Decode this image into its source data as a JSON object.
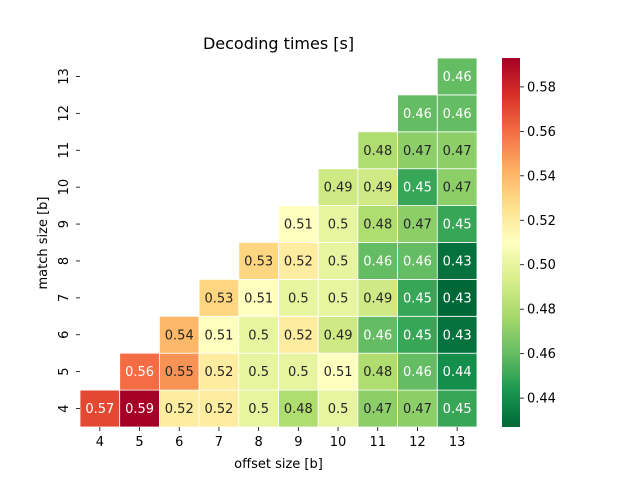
{
  "chart_data": {
    "type": "heatmap",
    "title": "Decoding times [s]",
    "xlabel": "offset size [b]",
    "ylabel": "match size [b]",
    "x_categories": [
      "4",
      "5",
      "6",
      "7",
      "8",
      "9",
      "10",
      "11",
      "12",
      "13"
    ],
    "y_categories": [
      "4",
      "5",
      "6",
      "7",
      "8",
      "9",
      "10",
      "11",
      "12",
      "13"
    ],
    "colormap": "RdYlGn_r",
    "vmin": 0.427,
    "vmax": 0.593,
    "colorbar_ticks": [
      "0.44",
      "0.46",
      "0.48",
      "0.50",
      "0.52",
      "0.54",
      "0.56",
      "0.58"
    ],
    "colorbar_tick_values": [
      0.44,
      0.46,
      0.48,
      0.5,
      0.52,
      0.54,
      0.56,
      0.58
    ],
    "cells": [
      {
        "x": "4",
        "y": "4",
        "value": 0.57,
        "label": "0.57"
      },
      {
        "x": "5",
        "y": "4",
        "value": 0.593,
        "label": "0.59"
      },
      {
        "x": "6",
        "y": "4",
        "value": 0.52,
        "label": "0.52"
      },
      {
        "x": "7",
        "y": "4",
        "value": 0.52,
        "label": "0.52"
      },
      {
        "x": "8",
        "y": "4",
        "value": 0.5,
        "label": "0.5"
      },
      {
        "x": "9",
        "y": "4",
        "value": 0.48,
        "label": "0.48"
      },
      {
        "x": "10",
        "y": "4",
        "value": 0.5,
        "label": "0.5"
      },
      {
        "x": "11",
        "y": "4",
        "value": 0.47,
        "label": "0.47"
      },
      {
        "x": "12",
        "y": "4",
        "value": 0.47,
        "label": "0.47"
      },
      {
        "x": "13",
        "y": "4",
        "value": 0.45,
        "label": "0.45"
      },
      {
        "x": "5",
        "y": "5",
        "value": 0.56,
        "label": "0.56"
      },
      {
        "x": "6",
        "y": "5",
        "value": 0.55,
        "label": "0.55"
      },
      {
        "x": "7",
        "y": "5",
        "value": 0.52,
        "label": "0.52"
      },
      {
        "x": "8",
        "y": "5",
        "value": 0.5,
        "label": "0.5"
      },
      {
        "x": "9",
        "y": "5",
        "value": 0.5,
        "label": "0.5"
      },
      {
        "x": "10",
        "y": "5",
        "value": 0.51,
        "label": "0.51"
      },
      {
        "x": "11",
        "y": "5",
        "value": 0.48,
        "label": "0.48"
      },
      {
        "x": "12",
        "y": "5",
        "value": 0.46,
        "label": "0.46"
      },
      {
        "x": "13",
        "y": "5",
        "value": 0.44,
        "label": "0.44"
      },
      {
        "x": "6",
        "y": "6",
        "value": 0.54,
        "label": "0.54"
      },
      {
        "x": "7",
        "y": "6",
        "value": 0.51,
        "label": "0.51"
      },
      {
        "x": "8",
        "y": "6",
        "value": 0.5,
        "label": "0.5"
      },
      {
        "x": "9",
        "y": "6",
        "value": 0.52,
        "label": "0.52"
      },
      {
        "x": "10",
        "y": "6",
        "value": 0.49,
        "label": "0.49"
      },
      {
        "x": "11",
        "y": "6",
        "value": 0.46,
        "label": "0.46"
      },
      {
        "x": "12",
        "y": "6",
        "value": 0.45,
        "label": "0.45"
      },
      {
        "x": "13",
        "y": "6",
        "value": 0.43,
        "label": "0.43"
      },
      {
        "x": "7",
        "y": "7",
        "value": 0.53,
        "label": "0.53"
      },
      {
        "x": "8",
        "y": "7",
        "value": 0.51,
        "label": "0.51"
      },
      {
        "x": "9",
        "y": "7",
        "value": 0.5,
        "label": "0.5"
      },
      {
        "x": "10",
        "y": "7",
        "value": 0.5,
        "label": "0.5"
      },
      {
        "x": "11",
        "y": "7",
        "value": 0.49,
        "label": "0.49"
      },
      {
        "x": "12",
        "y": "7",
        "value": 0.45,
        "label": "0.45"
      },
      {
        "x": "13",
        "y": "7",
        "value": 0.427,
        "label": "0.43"
      },
      {
        "x": "8",
        "y": "8",
        "value": 0.53,
        "label": "0.53"
      },
      {
        "x": "9",
        "y": "8",
        "value": 0.52,
        "label": "0.52"
      },
      {
        "x": "10",
        "y": "8",
        "value": 0.5,
        "label": "0.5"
      },
      {
        "x": "11",
        "y": "8",
        "value": 0.46,
        "label": "0.46"
      },
      {
        "x": "12",
        "y": "8",
        "value": 0.46,
        "label": "0.46"
      },
      {
        "x": "13",
        "y": "8",
        "value": 0.43,
        "label": "0.43"
      },
      {
        "x": "9",
        "y": "9",
        "value": 0.51,
        "label": "0.51"
      },
      {
        "x": "10",
        "y": "9",
        "value": 0.5,
        "label": "0.5"
      },
      {
        "x": "11",
        "y": "9",
        "value": 0.48,
        "label": "0.48"
      },
      {
        "x": "12",
        "y": "9",
        "value": 0.47,
        "label": "0.47"
      },
      {
        "x": "13",
        "y": "9",
        "value": 0.45,
        "label": "0.45"
      },
      {
        "x": "10",
        "y": "10",
        "value": 0.49,
        "label": "0.49"
      },
      {
        "x": "11",
        "y": "10",
        "value": 0.49,
        "label": "0.49"
      },
      {
        "x": "12",
        "y": "10",
        "value": 0.45,
        "label": "0.45"
      },
      {
        "x": "13",
        "y": "10",
        "value": 0.47,
        "label": "0.47"
      },
      {
        "x": "11",
        "y": "11",
        "value": 0.48,
        "label": "0.48"
      },
      {
        "x": "12",
        "y": "11",
        "value": 0.47,
        "label": "0.47"
      },
      {
        "x": "13",
        "y": "11",
        "value": 0.47,
        "label": "0.47"
      },
      {
        "x": "12",
        "y": "12",
        "value": 0.46,
        "label": "0.46"
      },
      {
        "x": "13",
        "y": "12",
        "value": 0.46,
        "label": "0.46"
      },
      {
        "x": "13",
        "y": "13",
        "value": 0.46,
        "label": "0.46"
      }
    ]
  }
}
